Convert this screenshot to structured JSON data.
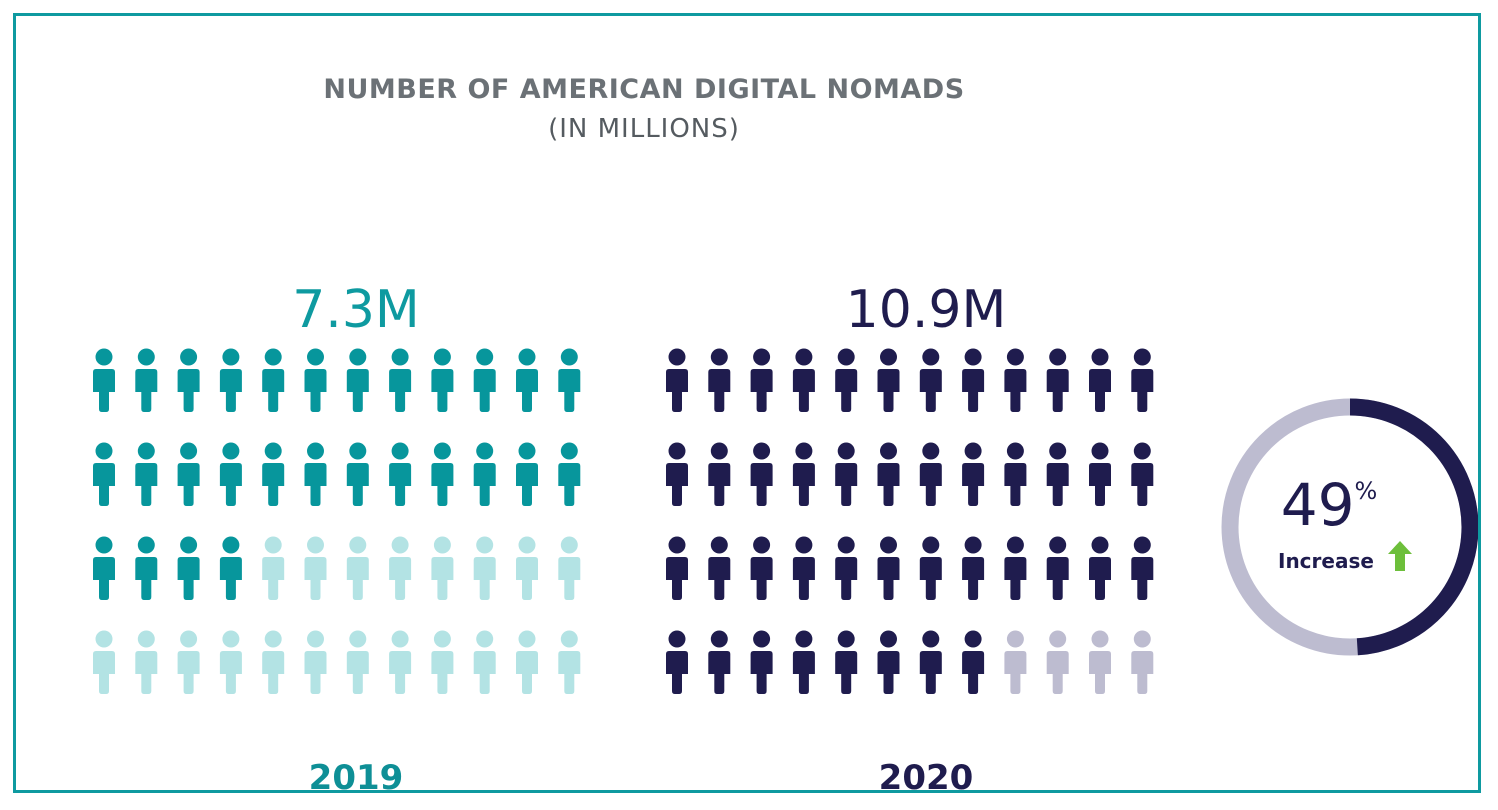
{
  "chart_data": {
    "type": "pictogram",
    "title": "NUMBER OF AMERICAN DIGITAL NOMADS",
    "subtitle": "(IN MILLIONS)",
    "categories": [
      "2019",
      "2020"
    ],
    "values": [
      7.3,
      10.9
    ],
    "value_labels": [
      "7.3M",
      "10.9M"
    ],
    "icon": "person-icon",
    "icons_per_group": 48,
    "icons_per_row": 12,
    "filled_icons": [
      28,
      44
    ],
    "colors": {
      "2019": {
        "filled": "#07969c",
        "empty": "#b3e3e4",
        "value_text": "#0e9aa0",
        "year_text": "#0e8f96"
      },
      "2020": {
        "filled": "#1f1c4e",
        "empty": "#bdbcd0",
        "value_text": "#1f1c4e",
        "year_text": "#1f1c4e"
      }
    },
    "change": {
      "percent": 49,
      "number_label": "49",
      "percent_sign": "%",
      "label": "Increase",
      "direction_icon": "arrow-up-icon",
      "ring_fill_fraction": 0.49,
      "ring_color": "#1f1c4e",
      "ring_track_color": "#bdbcd0",
      "arrow_color": "#6dbf3b"
    }
  },
  "frame_color": "#0e9aa0"
}
